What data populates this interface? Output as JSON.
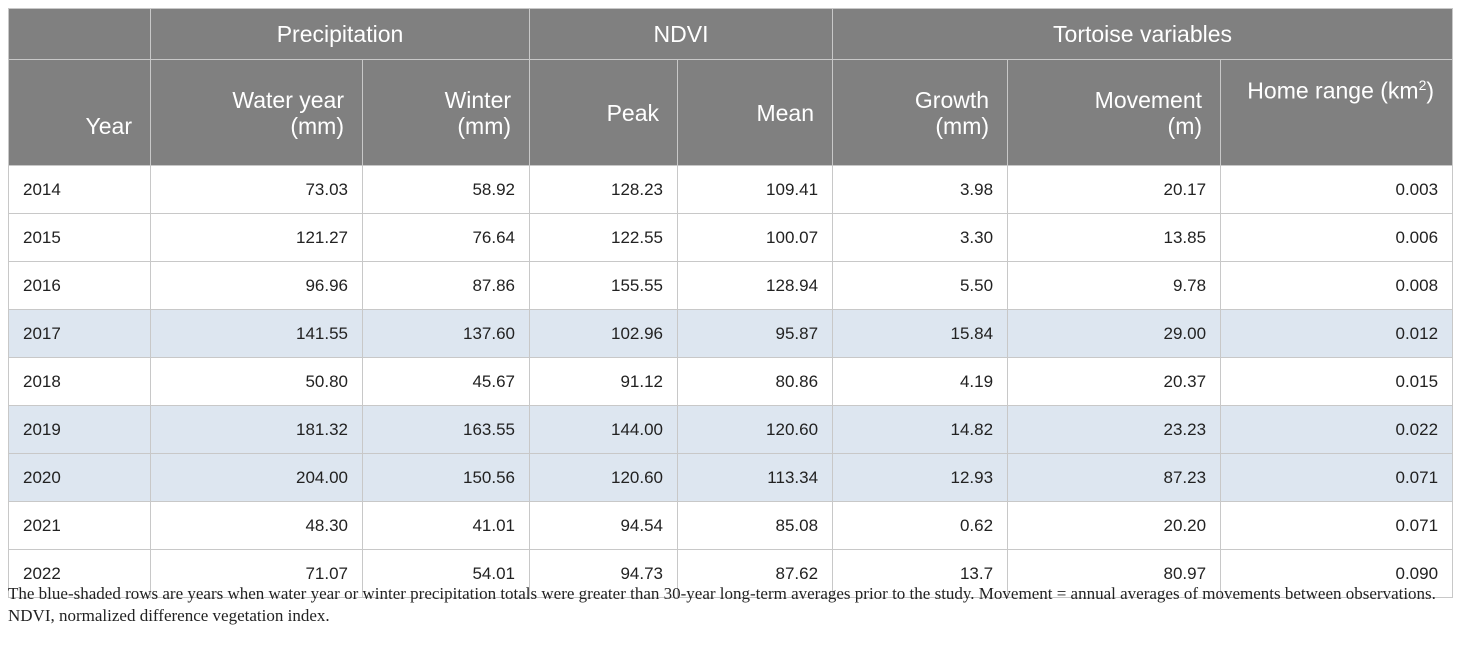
{
  "header": {
    "groups": {
      "precipitation": "Precipitation",
      "ndvi": "NDVI",
      "tortoise": "Tortoise variables"
    },
    "columns": {
      "year": "Year",
      "water_year_1": "Water year",
      "water_year_2": "(mm)",
      "winter_1": "Winter",
      "winter_2": "(mm)",
      "peak": "Peak",
      "mean": "Mean",
      "growth_1": "Growth",
      "growth_2": "(mm)",
      "movement_1": "Movement",
      "movement_2": "(m)",
      "home_range": "Home range (km",
      "home_range_sup": "2",
      "home_range_close": ")"
    }
  },
  "rows": [
    {
      "year": "2014",
      "water_year": "73.03",
      "winter": "58.92",
      "peak": "128.23",
      "mean": "109.41",
      "growth": "3.98",
      "movement": "20.17",
      "home_range": "0.003",
      "shaded": false
    },
    {
      "year": "2015",
      "water_year": "121.27",
      "winter": "76.64",
      "peak": "122.55",
      "mean": "100.07",
      "growth": "3.30",
      "movement": "13.85",
      "home_range": "0.006",
      "shaded": false
    },
    {
      "year": "2016",
      "water_year": "96.96",
      "winter": "87.86",
      "peak": "155.55",
      "mean": "128.94",
      "growth": "5.50",
      "movement": "9.78",
      "home_range": "0.008",
      "shaded": false
    },
    {
      "year": "2017",
      "water_year": "141.55",
      "winter": "137.60",
      "peak": "102.96",
      "mean": "95.87",
      "growth": "15.84",
      "movement": "29.00",
      "home_range": "0.012",
      "shaded": true
    },
    {
      "year": "2018",
      "water_year": "50.80",
      "winter": "45.67",
      "peak": "91.12",
      "mean": "80.86",
      "growth": "4.19",
      "movement": "20.37",
      "home_range": "0.015",
      "shaded": false
    },
    {
      "year": "2019",
      "water_year": "181.32",
      "winter": "163.55",
      "peak": "144.00",
      "mean": "120.60",
      "growth": "14.82",
      "movement": "23.23",
      "home_range": "0.022",
      "shaded": true
    },
    {
      "year": "2020",
      "water_year": "204.00",
      "winter": "150.56",
      "peak": "120.60",
      "mean": "113.34",
      "growth": "12.93",
      "movement": "87.23",
      "home_range": "0.071",
      "shaded": true
    },
    {
      "year": "2021",
      "water_year": "48.30",
      "winter": "41.01",
      "peak": "94.54",
      "mean": "85.08",
      "growth": "0.62",
      "movement": "20.20",
      "home_range": "0.071",
      "shaded": false
    },
    {
      "year": "2022",
      "water_year": "71.07",
      "winter": "54.01",
      "peak": "94.73",
      "mean": "87.62",
      "growth": "13.7",
      "movement": "80.97",
      "home_range": "0.090",
      "shaded": false
    }
  ],
  "notes": {
    "note_1": "The blue-shaded rows are years when water year or winter precipitation totals were greater than 30-year long-term averages prior to the study. Movement = annual averages of movements between observations.",
    "note_2": "NDVI, normalized difference vegetation index."
  },
  "colors": {
    "header_bg": "#808080",
    "header_text": "#ffffff",
    "shaded_row": "#dde6f0",
    "border": "#c8c8c8"
  }
}
